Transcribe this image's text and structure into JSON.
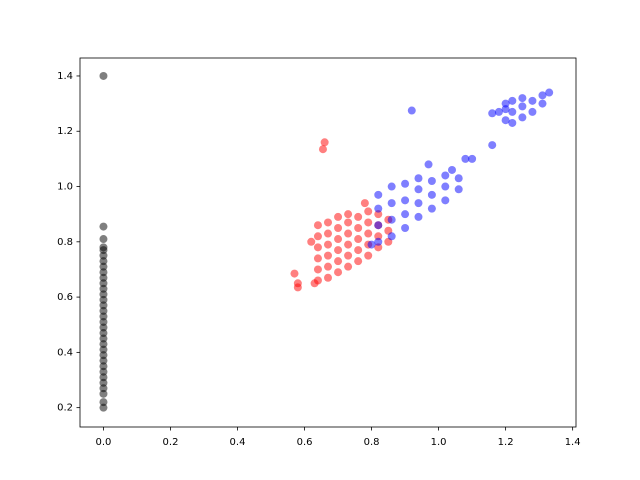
{
  "chart_data": {
    "type": "scatter",
    "xlim": [
      -0.07,
      1.41
    ],
    "ylim": [
      0.13,
      1.465
    ],
    "xticks": [
      {
        "value": 0,
        "label": "0.0"
      },
      0.2,
      0.4,
      0.6,
      0.8,
      {
        "value": 1,
        "label": "1.0"
      },
      1.2,
      1.4
    ],
    "yticks": [
      0.2,
      0.4,
      0.6,
      0.8,
      {
        "value": 1,
        "label": "1.0"
      },
      1.2,
      1.4
    ],
    "alpha": 0.5,
    "series": [
      {
        "color": "black",
        "x": [
          0,
          0,
          0,
          0,
          0,
          0,
          0,
          0,
          0,
          0,
          0,
          0,
          0,
          0,
          0,
          0,
          0,
          0,
          0,
          0,
          0,
          0,
          0,
          0,
          0,
          0,
          0,
          0,
          0,
          0,
          0,
          0,
          0
        ],
        "values": [
          0.2,
          0.22,
          0.25,
          0.27,
          0.29,
          0.31,
          0.33,
          0.35,
          0.37,
          0.39,
          0.41,
          0.43,
          0.45,
          0.47,
          0.49,
          0.51,
          0.53,
          0.55,
          0.57,
          0.59,
          0.61,
          0.63,
          0.65,
          0.67,
          0.69,
          0.71,
          0.73,
          0.75,
          0.77,
          0.78,
          0.81,
          0.855,
          1.4
        ]
      },
      {
        "color": "red",
        "x": [
          0.64,
          0.64,
          0.64,
          0.64,
          0.64,
          0.64,
          0.67,
          0.67,
          0.67,
          0.67,
          0.67,
          0.67,
          0.7,
          0.7,
          0.7,
          0.7,
          0.7,
          0.7,
          0.73,
          0.73,
          0.73,
          0.73,
          0.73,
          0.73,
          0.76,
          0.76,
          0.76,
          0.76,
          0.76,
          0.79,
          0.79,
          0.79,
          0.79,
          0.79,
          0.82,
          0.82,
          0.82,
          0.82,
          0.85,
          0.85,
          0.85,
          0.57,
          0.58,
          0.58,
          0.655,
          0.66,
          0.62,
          0.78,
          0.63
        ],
        "values": [
          0.66,
          0.7,
          0.74,
          0.78,
          0.82,
          0.86,
          0.67,
          0.71,
          0.75,
          0.79,
          0.83,
          0.87,
          0.69,
          0.73,
          0.77,
          0.81,
          0.85,
          0.89,
          0.71,
          0.75,
          0.79,
          0.83,
          0.87,
          0.9,
          0.73,
          0.77,
          0.81,
          0.85,
          0.89,
          0.75,
          0.79,
          0.83,
          0.87,
          0.91,
          0.78,
          0.82,
          0.86,
          0.9,
          0.8,
          0.84,
          0.88,
          0.685,
          0.65,
          0.635,
          1.135,
          1.16,
          0.8,
          0.94,
          0.65
        ]
      },
      {
        "color": "blue",
        "x": [
          0.82,
          0.82,
          0.82,
          0.82,
          0.86,
          0.86,
          0.86,
          0.86,
          0.9,
          0.9,
          0.9,
          0.9,
          0.94,
          0.94,
          0.94,
          0.94,
          0.98,
          0.98,
          0.98,
          1.02,
          1.02,
          1.02,
          1.06,
          1.06,
          1.1,
          0.8,
          0.97,
          1.08,
          1.16,
          1.04,
          1.16,
          1.18,
          1.2,
          1.2,
          1.2,
          1.22,
          1.22,
          1.22,
          1.25,
          1.25,
          1.25,
          1.28,
          1.28,
          1.31,
          1.31,
          1.33,
          0.92
        ],
        "values": [
          0.8,
          0.86,
          0.92,
          0.97,
          0.82,
          0.88,
          0.94,
          1.0,
          0.85,
          0.9,
          0.95,
          1.01,
          0.89,
          0.94,
          0.99,
          1.03,
          0.92,
          0.97,
          1.02,
          0.95,
          1.0,
          1.04,
          0.99,
          1.03,
          1.1,
          0.79,
          1.08,
          1.1,
          1.15,
          1.06,
          1.265,
          1.27,
          1.24,
          1.28,
          1.3,
          1.23,
          1.27,
          1.31,
          1.25,
          1.29,
          1.32,
          1.27,
          1.31,
          1.3,
          1.33,
          1.34,
          1.275
        ]
      }
    ]
  }
}
